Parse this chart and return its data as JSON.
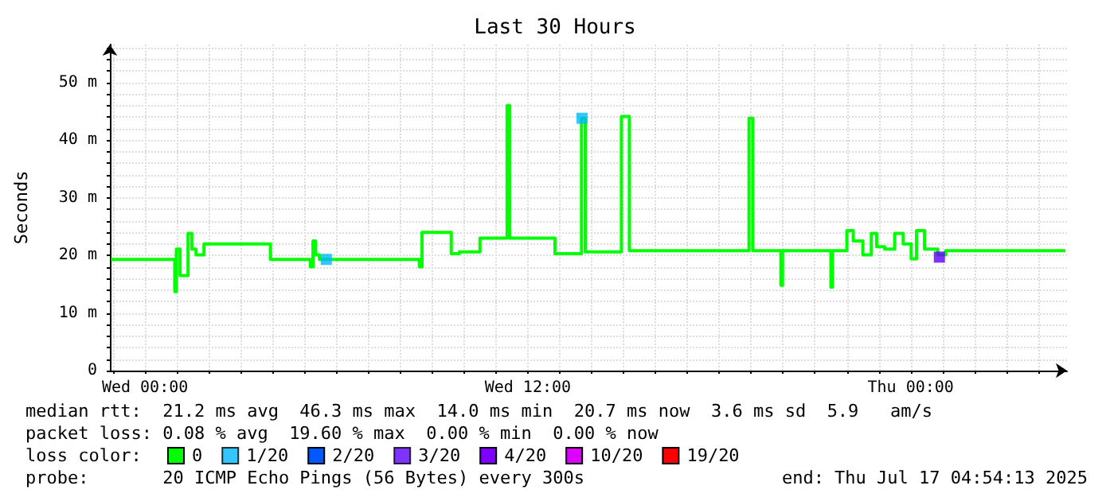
{
  "chart_data": {
    "type": "step",
    "title": "Last 30 Hours",
    "ylabel": "Seconds",
    "xlim": [
      "2025-07-15T22:54",
      "2025-07-17T04:54"
    ],
    "xticks": [
      {
        "value": "2025-07-15T23:00",
        "label": null
      },
      {
        "value": "2025-07-16T00:00",
        "label": "Wed 00:00"
      },
      {
        "value": "2025-07-16T01:00",
        "label": null
      },
      {
        "value": "2025-07-16T02:00",
        "label": null
      },
      {
        "value": "2025-07-16T03:00",
        "label": null
      },
      {
        "value": "2025-07-16T04:00",
        "label": null
      },
      {
        "value": "2025-07-16T05:00",
        "label": null
      },
      {
        "value": "2025-07-16T06:00",
        "label": null
      },
      {
        "value": "2025-07-16T07:00",
        "label": null
      },
      {
        "value": "2025-07-16T08:00",
        "label": null
      },
      {
        "value": "2025-07-16T09:00",
        "label": null
      },
      {
        "value": "2025-07-16T10:00",
        "label": null
      },
      {
        "value": "2025-07-16T11:00",
        "label": null
      },
      {
        "value": "2025-07-16T12:00",
        "label": "Wed 12:00"
      },
      {
        "value": "2025-07-16T13:00",
        "label": null
      },
      {
        "value": "2025-07-16T14:00",
        "label": null
      },
      {
        "value": "2025-07-16T15:00",
        "label": null
      },
      {
        "value": "2025-07-16T16:00",
        "label": null
      },
      {
        "value": "2025-07-16T17:00",
        "label": null
      },
      {
        "value": "2025-07-16T18:00",
        "label": null
      },
      {
        "value": "2025-07-16T19:00",
        "label": null
      },
      {
        "value": "2025-07-16T20:00",
        "label": null
      },
      {
        "value": "2025-07-16T21:00",
        "label": null
      },
      {
        "value": "2025-07-16T22:00",
        "label": null
      },
      {
        "value": "2025-07-16T23:00",
        "label": null
      },
      {
        "value": "2025-07-17T00:00",
        "label": "Thu 00:00"
      },
      {
        "value": "2025-07-17T01:00",
        "label": null
      },
      {
        "value": "2025-07-17T02:00",
        "label": null
      },
      {
        "value": "2025-07-17T03:00",
        "label": null
      },
      {
        "value": "2025-07-17T04:00",
        "label": null
      }
    ],
    "ylim": [
      0,
      56.6
    ],
    "yticks": [
      {
        "value": 0,
        "label": "0"
      },
      {
        "value": 2,
        "label": null
      },
      {
        "value": 4,
        "label": null
      },
      {
        "value": 6,
        "label": null
      },
      {
        "value": 8,
        "label": null
      },
      {
        "value": 10,
        "label": "10 m"
      },
      {
        "value": 12,
        "label": null
      },
      {
        "value": 14,
        "label": null
      },
      {
        "value": 16,
        "label": null
      },
      {
        "value": 18,
        "label": null
      },
      {
        "value": 20,
        "label": "20 m"
      },
      {
        "value": 22,
        "label": null
      },
      {
        "value": 24,
        "label": null
      },
      {
        "value": 26,
        "label": null
      },
      {
        "value": 28,
        "label": null
      },
      {
        "value": 30,
        "label": "30 m"
      },
      {
        "value": 32,
        "label": null
      },
      {
        "value": 34,
        "label": null
      },
      {
        "value": 36,
        "label": null
      },
      {
        "value": 38,
        "label": null
      },
      {
        "value": 40,
        "label": "40 m"
      },
      {
        "value": 42,
        "label": null
      },
      {
        "value": 44,
        "label": null
      },
      {
        "value": 46,
        "label": null
      },
      {
        "value": 48,
        "label": null
      },
      {
        "value": 50,
        "label": "50 m"
      },
      {
        "value": 52,
        "label": null
      },
      {
        "value": 54,
        "label": null
      },
      {
        "value": 56,
        "label": null
      }
    ],
    "grid": true,
    "legend": "bottom",
    "legend_title": "loss color:",
    "marker": "none",
    "series": [
      {
        "name": "0",
        "color": "#00ff00",
        "x": [
          "2025-07-15T22:56",
          "2025-07-16T00:56",
          "2025-07-16T00:59",
          "2025-07-16T01:06",
          "2025-07-16T01:21",
          "2025-07-16T01:28",
          "2025-07-16T01:36",
          "2025-07-16T01:51",
          "2025-07-16T03:56",
          "2025-07-16T04:11",
          "2025-07-16T05:11",
          "2025-07-16T05:16",
          "2025-07-16T05:21",
          "2025-07-16T05:28",
          "2025-07-16T05:41",
          "2025-07-16T08:36",
          "2025-07-16T08:41",
          "2025-07-16T09:36",
          "2025-07-16T09:51",
          "2025-07-16T10:30",
          "2025-07-16T11:21",
          "2025-07-16T11:26",
          "2025-07-16T12:51",
          "2025-07-16T13:41",
          "2025-07-16T13:48",
          "2025-07-16T14:56",
          "2025-07-16T15:11",
          "2025-07-16T18:56",
          "2025-07-16T19:03",
          "2025-07-16T19:56",
          "2025-07-16T19:59",
          "2025-07-16T20:00",
          "2025-07-16T21:30",
          "2025-07-16T21:33",
          "2025-07-16T21:36",
          "2025-07-16T22:00",
          "2025-07-16T22:12",
          "2025-07-16T22:30",
          "2025-07-16T22:46",
          "2025-07-16T22:56",
          "2025-07-16T23:11",
          "2025-07-16T23:30",
          "2025-07-16T23:46",
          "2025-07-17T00:01",
          "2025-07-17T00:11",
          "2025-07-17T00:26",
          "2025-07-17T00:51",
          "2025-07-17T01:06",
          "2025-07-17T04:51"
        ],
        "values": [
          19.3,
          13.7,
          21.1,
          16.5,
          23.8,
          21.1,
          20.1,
          22.0,
          19.3,
          19.3,
          18.0,
          22.5,
          20.1,
          19.3,
          19.3,
          18.0,
          24.0,
          20.3,
          20.6,
          23.0,
          46.0,
          23.0,
          20.3,
          43.8,
          20.6,
          44.1,
          20.8,
          43.8,
          20.8,
          14.8,
          20.8,
          20.8,
          14.5,
          20.8,
          20.8,
          24.3,
          22.5,
          20.1,
          23.8,
          21.5,
          21.1,
          23.8,
          22.0,
          19.4,
          24.3,
          21.1,
          20.1,
          20.8,
          20.8
        ]
      },
      {
        "name": "1/20",
        "color": "#00b8ff",
        "type": "scatter",
        "marker": "square",
        "x": [
          "2025-07-16T05:41",
          "2025-07-16T13:42"
        ],
        "values": [
          19.3,
          43.8
        ]
      },
      {
        "name": "2/20",
        "color": "#0059ff"
      },
      {
        "name": "3/20",
        "color": "#5e00ff",
        "type": "scatter",
        "marker": "square",
        "x": [
          "2025-07-17T00:54"
        ],
        "values": [
          19.7
        ]
      },
      {
        "name": "4/20",
        "color": "#7e00ff"
      },
      {
        "name": "10/20",
        "color": "#dd00ff"
      },
      {
        "name": "19/20",
        "color": "#ff0000"
      }
    ],
    "annotations": [
      "median rtt:  21.2 ms avg  46.3 ms max  14.0 ms min  20.7 ms now  3.6 ms sd  5.9   am/s",
      "packet loss: 0.08 % avg  19.60 % max  0.00 % min  0.00 % now",
      "probe:       20 ICMP Echo Pings (56 Bytes) every 300s",
      "end: Thu Jul 17 04:54:13 2025"
    ]
  }
}
